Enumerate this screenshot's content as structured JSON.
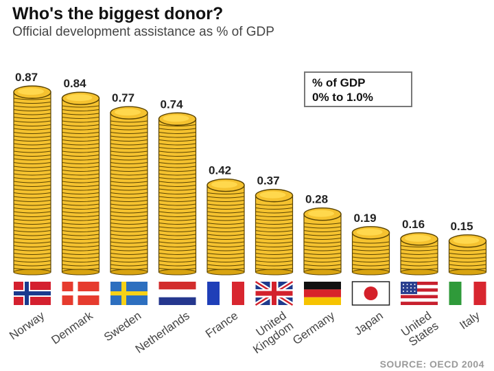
{
  "header": {
    "title": "Who's the biggest donor?",
    "subtitle": "Official development assistance as % of GDP"
  },
  "legend": {
    "line1": "% of GDP",
    "line2": "0% to 1.0%"
  },
  "source": "SOURCE: OECD 2004",
  "colors": {
    "coin_fill": "#f5c22f",
    "coin_edge": "#5a4300",
    "coin_shadow": "#d9a411"
  },
  "chart_data": {
    "type": "bar",
    "title": "Who's the biggest donor?",
    "subtitle": "Official development assistance as % of GDP",
    "categories": [
      "Norway",
      "Denmark",
      "Sweden",
      "Netherlands",
      "France",
      "United Kingdom",
      "Germany",
      "Japan",
      "United States",
      "Italy"
    ],
    "category_lines": [
      [
        "Norway"
      ],
      [
        "Denmark"
      ],
      [
        "Sweden"
      ],
      [
        "Netherlands"
      ],
      [
        "France"
      ],
      [
        "United",
        "Kingdom"
      ],
      [
        "Germany"
      ],
      [
        "Japan"
      ],
      [
        "United",
        "States"
      ],
      [
        "Italy"
      ]
    ],
    "values": [
      0.87,
      0.84,
      0.77,
      0.74,
      0.42,
      0.37,
      0.28,
      0.19,
      0.16,
      0.15
    ],
    "data_labels": [
      "0.87",
      "0.84",
      "0.77",
      "0.74",
      "0.42",
      "0.37",
      "0.28",
      "0.19",
      "0.16",
      "0.15"
    ],
    "flags": [
      "norway-flag",
      "denmark-flag",
      "sweden-flag",
      "netherlands-flag",
      "france-flag",
      "uk-flag",
      "germany-flag",
      "japan-flag",
      "usa-flag",
      "italy-flag"
    ],
    "ylim": [
      0,
      1.0
    ],
    "xlabel": "",
    "ylabel": "",
    "grid": false
  }
}
